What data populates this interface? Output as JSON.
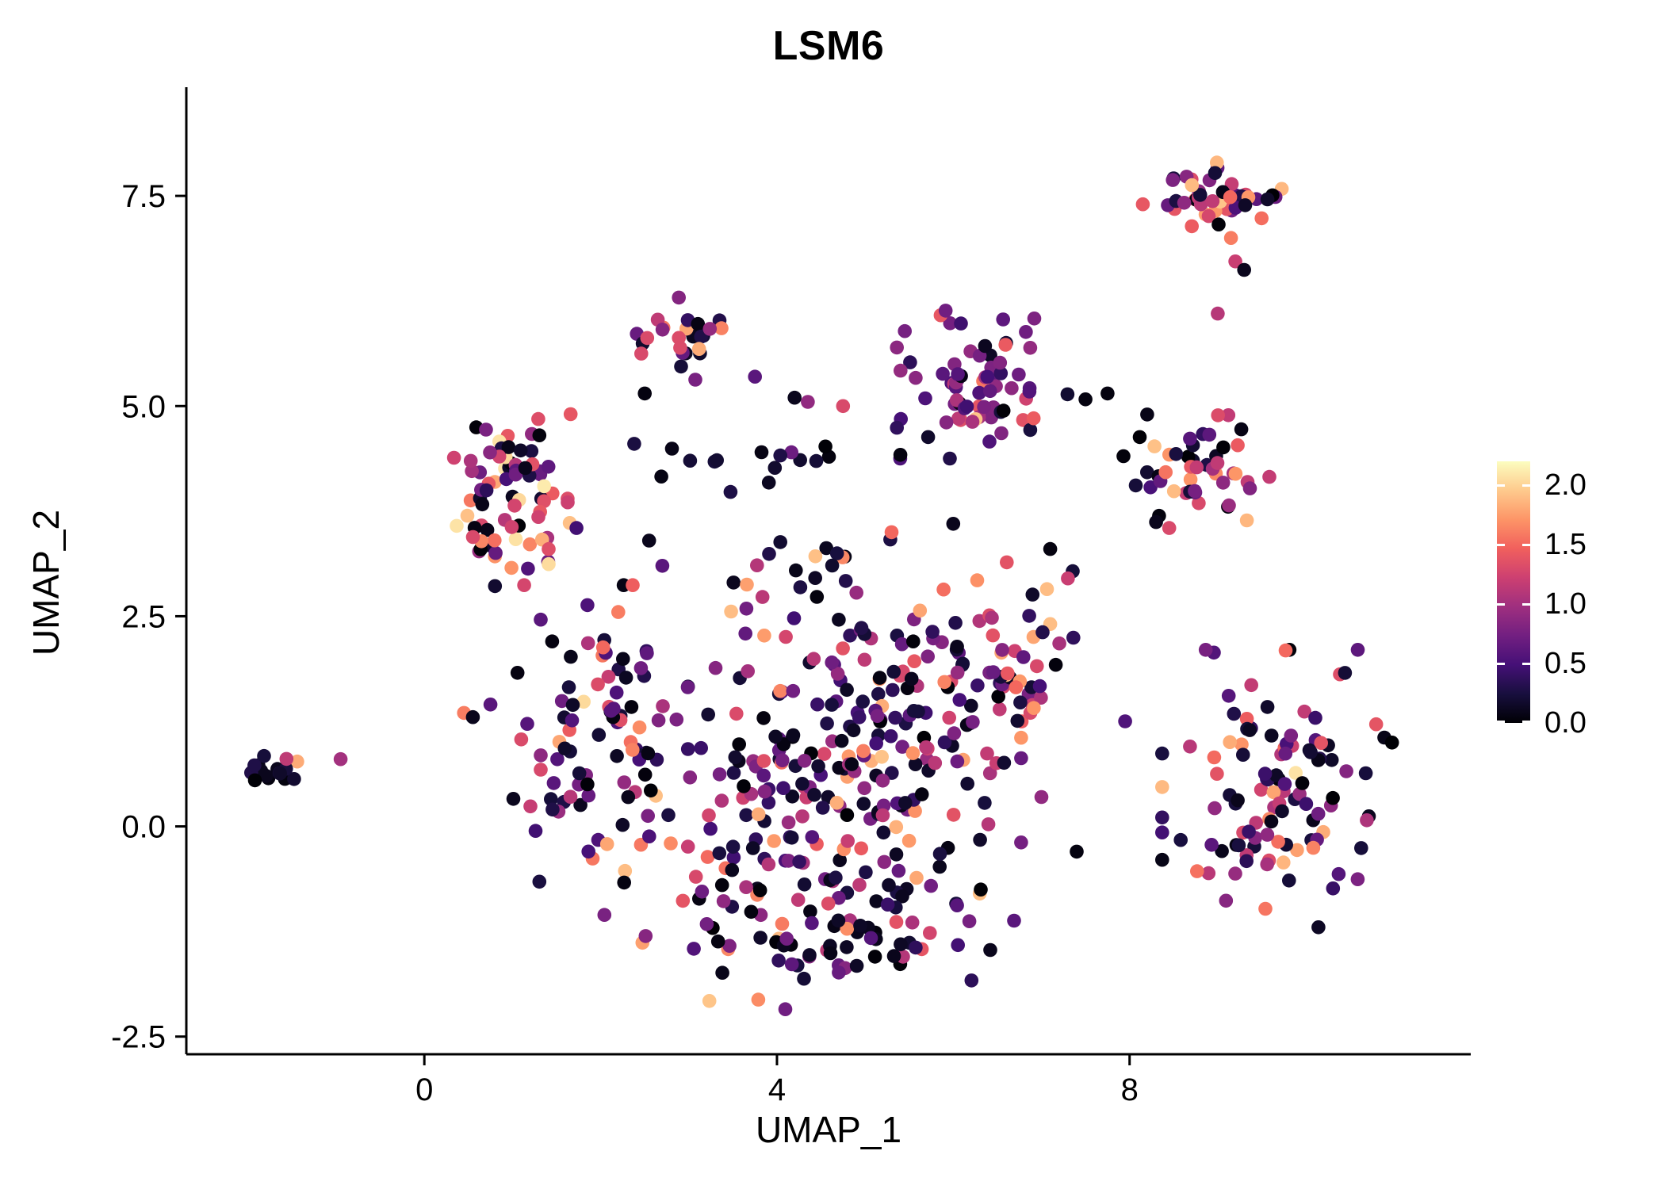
{
  "chart_data": {
    "type": "scatter",
    "title": "LSM6",
    "xlabel": "UMAP_1",
    "ylabel": "UMAP_2",
    "xlim": [
      -2.7,
      11.87
    ],
    "ylim": [
      -2.71,
      8.51
    ],
    "grid": false,
    "x_ticks": [
      {
        "value": 0,
        "label": "0"
      },
      {
        "value": 4,
        "label": "4"
      },
      {
        "value": 8,
        "label": "8"
      }
    ],
    "y_ticks": [
      {
        "value": -2.5,
        "label": "-2.5"
      },
      {
        "value": 0.0,
        "label": "0.0"
      },
      {
        "value": 2.5,
        "label": "2.5"
      },
      {
        "value": 5.0,
        "label": "5.0"
      },
      {
        "value": 7.5,
        "label": "7.5"
      }
    ],
    "legend": {
      "position": "right",
      "title": "",
      "ticks": [
        {
          "value": 2.0,
          "label": "2.0"
        },
        {
          "value": 1.5,
          "label": "1.5"
        },
        {
          "value": 1.0,
          "label": "1.0"
        },
        {
          "value": 0.5,
          "label": "0.5"
        },
        {
          "value": 0.0,
          "label": "0.0"
        }
      ]
    },
    "color_domain": [
      0,
      2.2
    ],
    "colormap": {
      "name": "magma",
      "stops": [
        [
          0.0,
          "#000004"
        ],
        [
          0.111,
          "#180f3e"
        ],
        [
          0.222,
          "#451077"
        ],
        [
          0.333,
          "#721f81"
        ],
        [
          0.444,
          "#9f2f7f"
        ],
        [
          0.556,
          "#cd4071"
        ],
        [
          0.667,
          "#f1605d"
        ],
        [
          0.778,
          "#fd9567"
        ],
        [
          0.889,
          "#feca8d"
        ],
        [
          1.0,
          "#fcfdbf"
        ]
      ]
    },
    "point_radius": 8.8,
    "seed": 7,
    "value_bins": [
      [
        0.0,
        0.3
      ],
      [
        0.35,
        0.95
      ],
      [
        1.0,
        1.45
      ],
      [
        1.5,
        1.95
      ],
      [
        2.0,
        2.15
      ]
    ],
    "clusters": [
      {
        "name": "left-isolate",
        "cx": -1.75,
        "cy": 0.67,
        "sx": 0.14,
        "sy": 0.09,
        "n": 17,
        "weights": [
          0.6,
          0.2,
          0.15,
          0.05,
          0.0
        ]
      },
      {
        "name": "top-right",
        "cx": 9.0,
        "cy": 7.5,
        "sx": 0.33,
        "sy": 0.18,
        "n": 46,
        "weights": [
          0.35,
          0.22,
          0.25,
          0.18,
          0.0
        ]
      },
      {
        "name": "top-middle",
        "cx": 3.0,
        "cy": 5.8,
        "sx": 0.28,
        "sy": 0.26,
        "n": 26,
        "weights": [
          0.25,
          0.28,
          0.22,
          0.2,
          0.05
        ]
      },
      {
        "name": "upper-purple",
        "cx": 6.35,
        "cy": 5.3,
        "sx": 0.45,
        "sy": 0.42,
        "n": 72,
        "weights": [
          0.16,
          0.62,
          0.16,
          0.06,
          0.0
        ]
      },
      {
        "name": "right-mid",
        "cx": 8.75,
        "cy": 4.3,
        "sx": 0.38,
        "sy": 0.3,
        "n": 46,
        "weights": [
          0.28,
          0.24,
          0.3,
          0.18,
          0.0
        ]
      },
      {
        "name": "left-upper",
        "cx": 1.0,
        "cy": 3.95,
        "sx": 0.33,
        "sy": 0.5,
        "n": 78,
        "weights": [
          0.3,
          0.28,
          0.2,
          0.17,
          0.05
        ]
      },
      {
        "name": "dark-band",
        "cx": 3.7,
        "cy": 4.3,
        "sx": 0.6,
        "sy": 0.16,
        "n": 16,
        "weights": [
          0.75,
          0.12,
          0.13,
          0.0,
          0.0
        ]
      },
      {
        "name": "central-left",
        "cx": 2.0,
        "cy": 1.0,
        "sx": 0.45,
        "sy": 0.85,
        "n": 85,
        "weights": [
          0.38,
          0.3,
          0.18,
          0.13,
          0.01
        ]
      },
      {
        "name": "central-mid",
        "cx": 3.5,
        "cy": 0.3,
        "sx": 0.75,
        "sy": 0.8,
        "n": 80,
        "weights": [
          0.4,
          0.28,
          0.18,
          0.13,
          0.01
        ]
      },
      {
        "name": "central-core",
        "cx": 4.9,
        "cy": 0.4,
        "sx": 0.85,
        "sy": 0.85,
        "n": 120,
        "weights": [
          0.38,
          0.3,
          0.2,
          0.12,
          0.0
        ]
      },
      {
        "name": "central-upper",
        "cx": 5.7,
        "cy": 1.6,
        "sx": 0.7,
        "sy": 0.6,
        "n": 75,
        "weights": [
          0.35,
          0.3,
          0.22,
          0.13,
          0.0
        ]
      },
      {
        "name": "bottom-arc",
        "cx": 4.6,
        "cy": -1.25,
        "sx": 0.95,
        "sy": 0.42,
        "n": 70,
        "weights": [
          0.45,
          0.3,
          0.15,
          0.1,
          0.0
        ]
      },
      {
        "name": "mid-right-knot",
        "cx": 6.6,
        "cy": 2.2,
        "sx": 0.38,
        "sy": 0.5,
        "n": 38,
        "weights": [
          0.3,
          0.25,
          0.25,
          0.2,
          0.0
        ]
      },
      {
        "name": "central-top-sparse",
        "cx": 4.3,
        "cy": 2.9,
        "sx": 0.7,
        "sy": 0.35,
        "n": 26,
        "weights": [
          0.45,
          0.25,
          0.2,
          0.1,
          0.0
        ]
      },
      {
        "name": "bottom-right",
        "cx": 9.8,
        "cy": 0.45,
        "sx": 0.65,
        "sy": 0.75,
        "n": 112,
        "weights": [
          0.3,
          0.34,
          0.2,
          0.15,
          0.01
        ]
      }
    ],
    "extra_points": [
      [
        -0.95,
        0.8,
        1.0
      ],
      [
        8.15,
        7.4,
        1.4
      ],
      [
        9.15,
        7.0,
        1.6
      ],
      [
        9.2,
        6.72,
        1.2
      ],
      [
        9.3,
        6.62,
        0.1
      ],
      [
        9.0,
        6.1,
        1.1
      ],
      [
        7.75,
        5.15,
        0.05
      ],
      [
        8.2,
        4.9,
        0.08
      ],
      [
        7.5,
        5.08,
        0.05
      ],
      [
        8.45,
        3.55,
        1.3
      ],
      [
        8.3,
        3.62,
        0.1
      ],
      [
        3.75,
        5.35,
        0.6
      ],
      [
        2.5,
        5.15,
        0.05
      ],
      [
        4.2,
        5.1,
        0.1
      ],
      [
        4.35,
        5.05,
        0.9
      ],
      [
        4.75,
        5.0,
        1.3
      ],
      [
        5.4,
        4.42,
        0.05
      ],
      [
        2.55,
        3.4,
        0.1
      ],
      [
        2.7,
        3.1,
        0.6
      ],
      [
        7.1,
        3.3,
        0.05
      ],
      [
        7.3,
        2.95,
        1.2
      ],
      [
        7.95,
        1.25,
        0.55
      ],
      [
        7.4,
        -0.3,
        0.05
      ],
      [
        7.0,
        0.35,
        0.9
      ],
      [
        6.0,
        3.6,
        0.1
      ],
      [
        5.3,
        3.5,
        1.5
      ],
      [
        2.2,
        2.55,
        1.6
      ],
      [
        1.45,
        2.2,
        0.05
      ],
      [
        0.45,
        1.35,
        1.6
      ],
      [
        0.55,
        1.3,
        0.1
      ],
      [
        0.75,
        1.45,
        0.6
      ]
    ]
  }
}
